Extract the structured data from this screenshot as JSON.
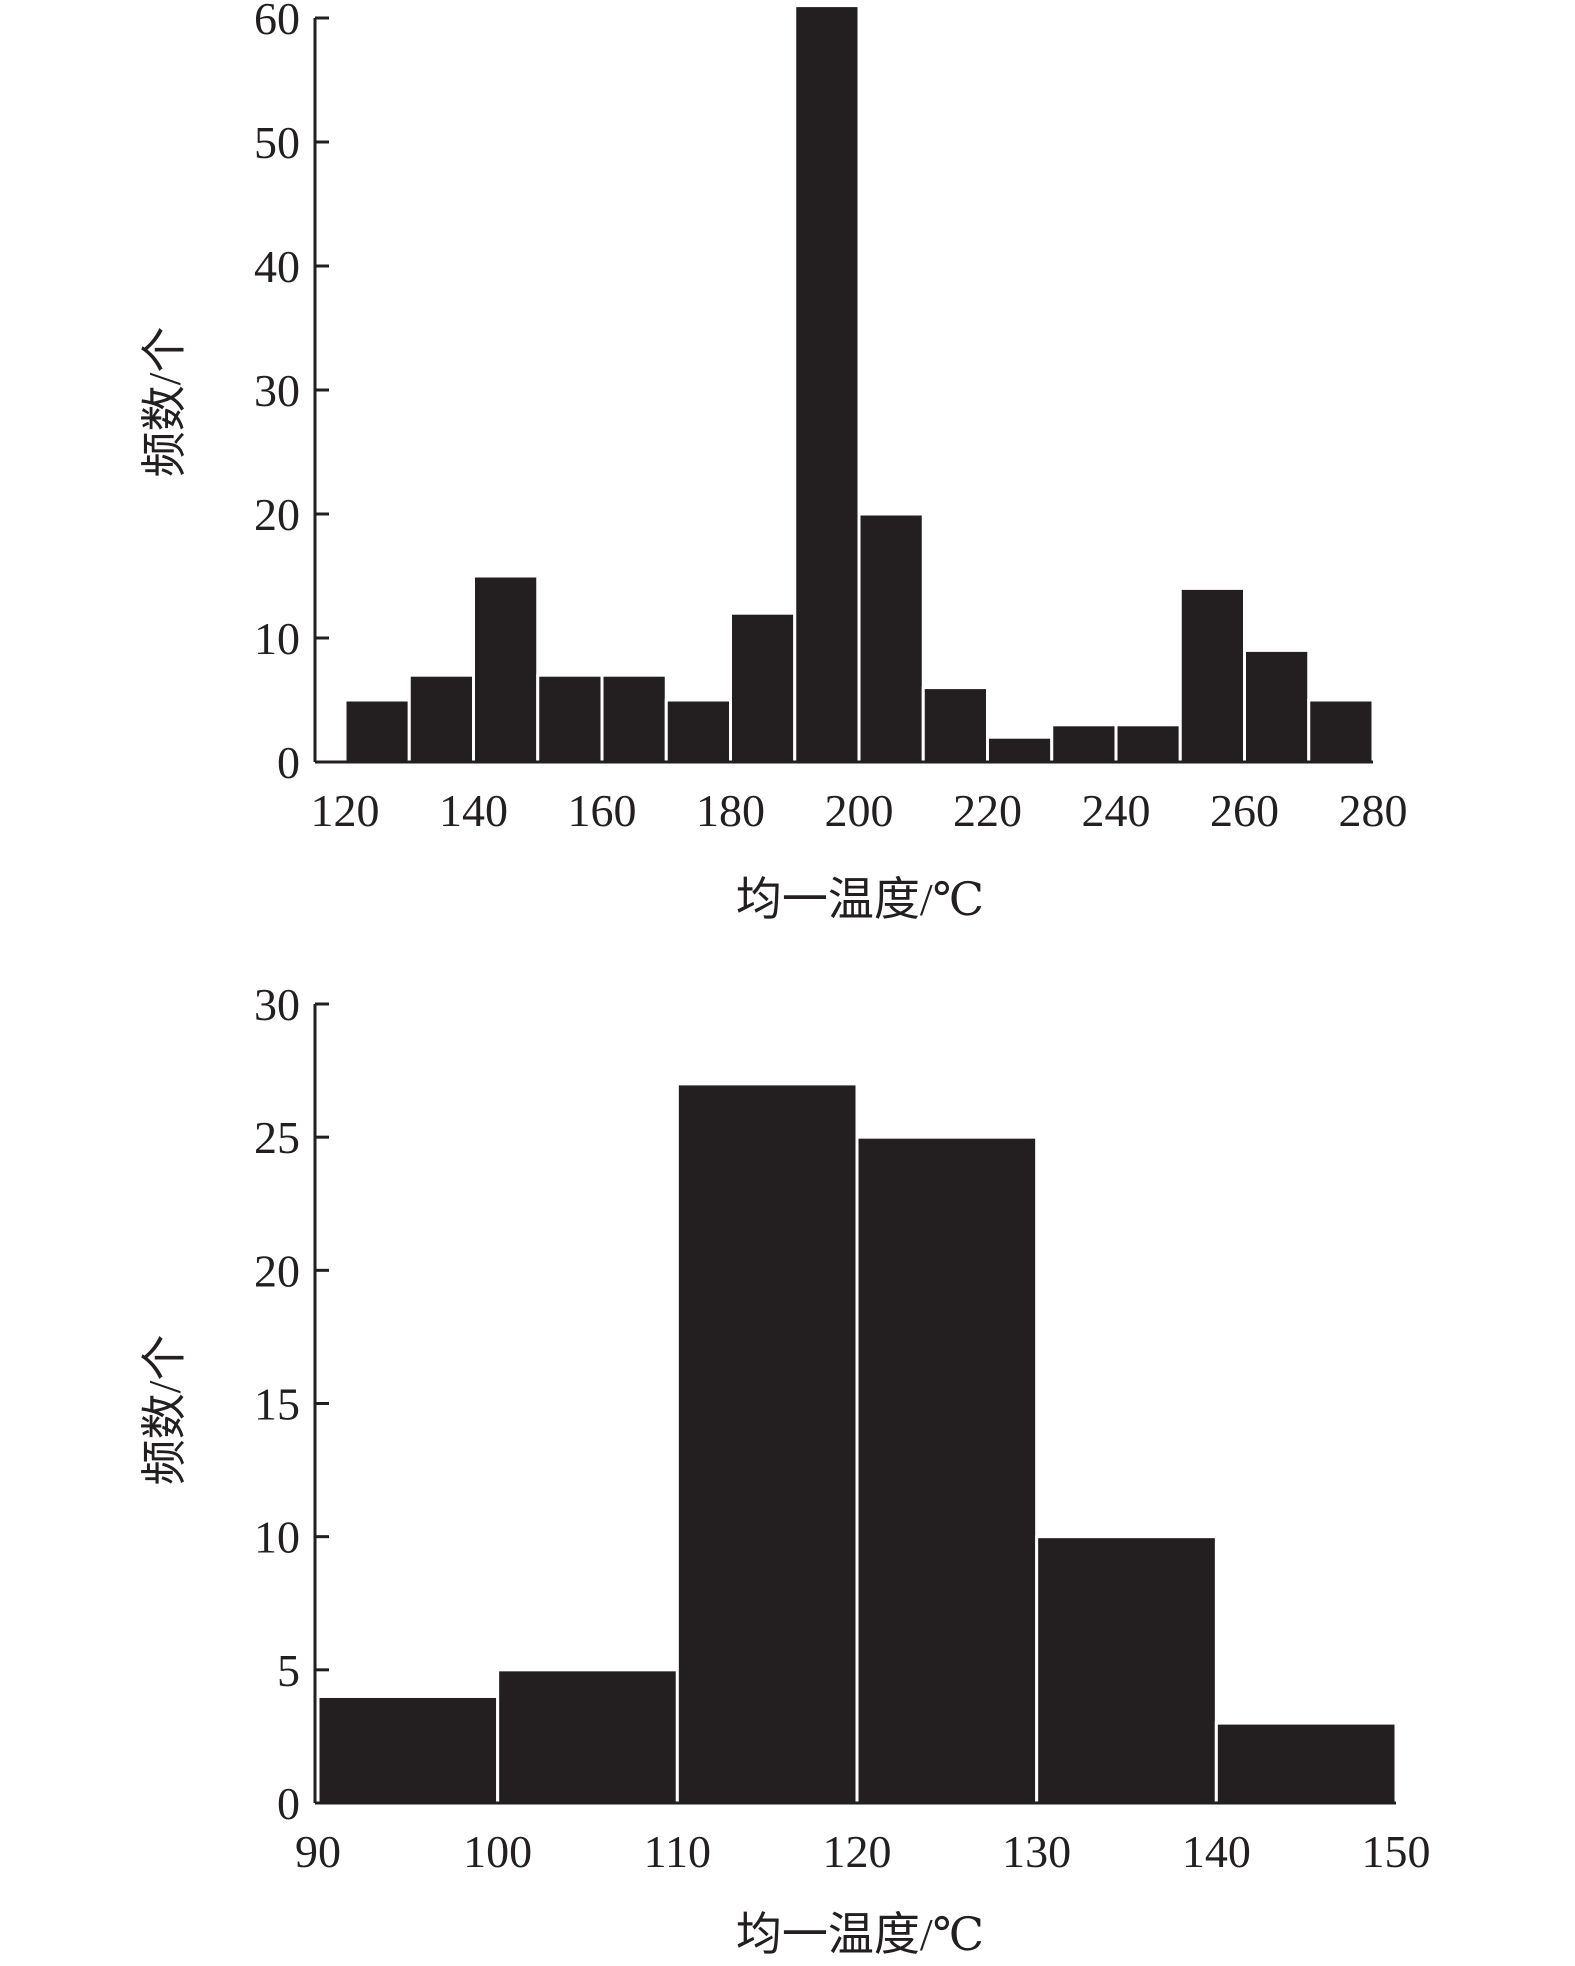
{
  "chart_data": [
    {
      "type": "bar",
      "bin_edges": [
        120,
        130,
        140,
        150,
        160,
        170,
        180,
        190,
        200,
        210,
        220,
        230,
        240,
        250,
        260,
        270,
        280
      ],
      "values": [
        5,
        7,
        15,
        7,
        7,
        5,
        12,
        61,
        20,
        6,
        2,
        3,
        3,
        14,
        9,
        5
      ],
      "xlabel": "均一温度/℃",
      "ylabel": "频数/个",
      "xlim": [
        120,
        280
      ],
      "ylim": [
        0,
        60
      ],
      "x_ticks": [
        "120",
        "140",
        "160",
        "180",
        "200",
        "220",
        "240",
        "260",
        "280"
      ],
      "y_ticks": [
        "0",
        "10",
        "20",
        "30",
        "40",
        "50",
        "60"
      ],
      "grid": false,
      "colors": {
        "bar": "#231f20"
      }
    },
    {
      "type": "bar",
      "bin_edges": [
        90,
        100,
        110,
        120,
        130,
        140,
        150
      ],
      "values": [
        4,
        5,
        27,
        25,
        10,
        3
      ],
      "xlabel": "均一温度/℃",
      "ylabel": "频数/个",
      "xlim": [
        90,
        150
      ],
      "ylim": [
        0,
        30
      ],
      "x_ticks": [
        "90",
        "100",
        "110",
        "120",
        "130",
        "140",
        "150"
      ],
      "y_ticks": [
        "0",
        "5",
        "10",
        "15",
        "20",
        "25",
        "30"
      ],
      "grid": false,
      "colors": {
        "bar": "#231f20"
      }
    }
  ]
}
